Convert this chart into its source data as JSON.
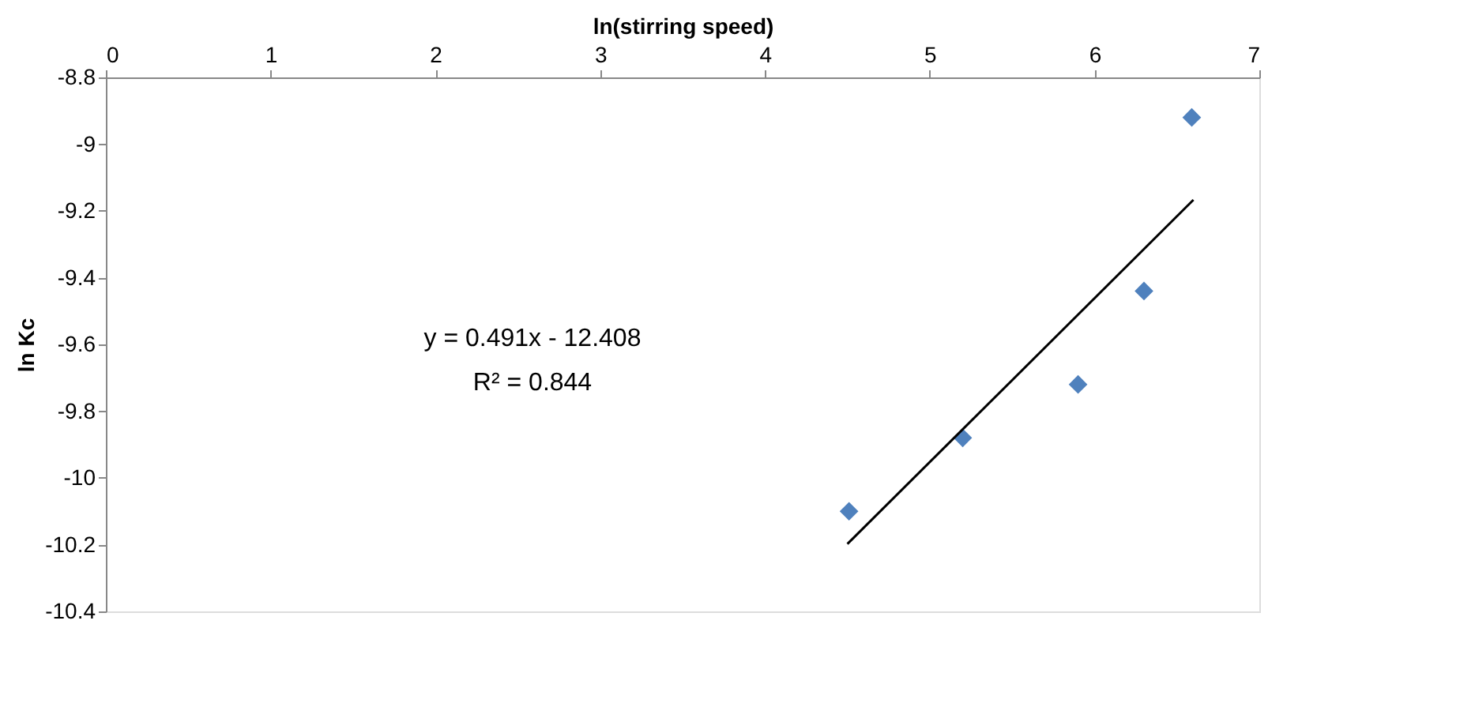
{
  "chart_data": {
    "type": "scatter",
    "xlabel": "ln(stirring speed)",
    "ylabel": "ln Kc",
    "xlim": [
      0,
      7
    ],
    "xticks": [
      0,
      1,
      2,
      3,
      4,
      5,
      6,
      7
    ],
    "ylim": [
      -10.4,
      -8.8
    ],
    "yticks": [
      -10.4,
      -10.2,
      -10,
      -9.8,
      -9.6,
      -9.4,
      -9.2,
      -9,
      -8.8
    ],
    "grid": false,
    "series": [
      {
        "marker": "diamond",
        "color": "#4f81bd",
        "x": [
          4.51,
          5.2,
          5.9,
          6.3,
          6.59
        ],
        "values": [
          -10.1,
          -9.88,
          -9.72,
          -9.44,
          -8.92
        ]
      },
      {
        "type": "line",
        "color": "#000000",
        "x": [
          4.5,
          6.6
        ],
        "values": [
          -10.198,
          -9.167
        ],
        "line_style": "solid"
      }
    ],
    "annotations": [
      "y = 0.491x - 12.408",
      "R² = 0.844"
    ]
  }
}
